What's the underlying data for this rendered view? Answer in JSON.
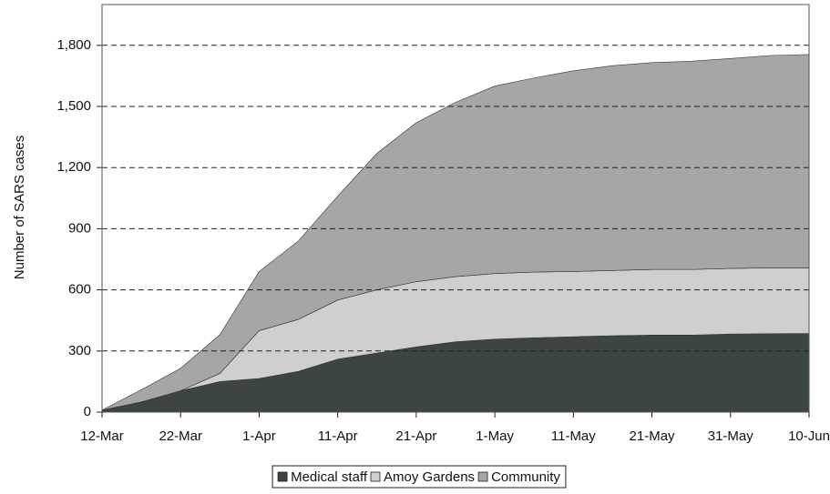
{
  "chart_data": {
    "type": "stacked-area",
    "y_label": "Number of SARS cases",
    "x": [
      "12-Mar",
      "17-Mar",
      "22-Mar",
      "27-Mar",
      "1-Apr",
      "6-Apr",
      "11-Apr",
      "16-Apr",
      "21-Apr",
      "26-Apr",
      "1-May",
      "6-May",
      "11-May",
      "16-May",
      "21-May",
      "26-May",
      "31-May",
      "5-Jun",
      "10-Jun"
    ],
    "xlim": [
      "12-Mar",
      "10-Jun"
    ],
    "xticks": [
      "12-Mar",
      "22-Mar",
      "1-Apr",
      "11-Apr",
      "21-Apr",
      "1-May",
      "11-May",
      "21-May",
      "31-May",
      "10-Jun"
    ],
    "ylim": [
      0,
      2000
    ],
    "yticks": [
      0,
      300,
      600,
      900,
      {
        "value": 1200,
        "label": "1,200"
      },
      {
        "value": 1500,
        "label": "1,500"
      },
      {
        "value": 1800,
        "label": "1,800"
      }
    ],
    "grid": true,
    "legend": "bottom",
    "series": [
      {
        "name": "Medical staff",
        "color": "#3d4444",
        "values": [
          10,
          50,
          105,
          150,
          165,
          200,
          260,
          290,
          320,
          345,
          358,
          365,
          370,
          375,
          378,
          378,
          383,
          385,
          386
        ]
      },
      {
        "name": "Amoy Gardens",
        "color": "#cfcfcf",
        "values": [
          0,
          0,
          0,
          40,
          235,
          255,
          290,
          310,
          320,
          320,
          322,
          322,
          320,
          320,
          322,
          322,
          322,
          323,
          322
        ]
      },
      {
        "name": "Community",
        "color": "#a6a6a6",
        "values": [
          0,
          60,
          110,
          190,
          290,
          385,
          510,
          670,
          780,
          855,
          920,
          953,
          985,
          1005,
          1015,
          1022,
          1030,
          1042,
          1047
        ]
      }
    ]
  }
}
